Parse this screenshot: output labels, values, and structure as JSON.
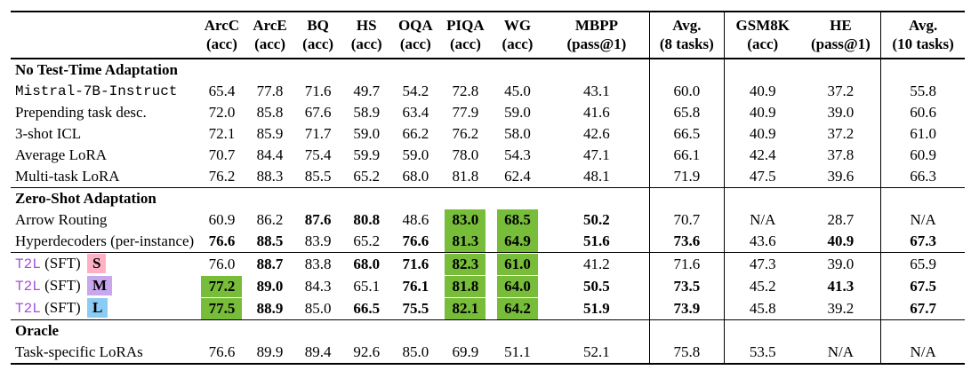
{
  "colors": {
    "green_highlight": "#77bd3a",
    "badge_s": "#ffb0c4",
    "badge_m": "#c9a7ef",
    "badge_l": "#8bccf5",
    "t2l_purple": "#a44fd9"
  },
  "header": {
    "columns": [
      {
        "key": "arcc",
        "line1": "ArcC",
        "line2": "(acc)"
      },
      {
        "key": "arce",
        "line1": "ArcE",
        "line2": "(acc)"
      },
      {
        "key": "bq",
        "line1": "BQ",
        "line2": "(acc)"
      },
      {
        "key": "hs",
        "line1": "HS",
        "line2": "(acc)"
      },
      {
        "key": "oqa",
        "line1": "OQA",
        "line2": "(acc)"
      },
      {
        "key": "piqa",
        "line1": "PIQA",
        "line2": "(acc)"
      },
      {
        "key": "wg",
        "line1": "WG",
        "line2": "(acc)"
      },
      {
        "key": "mbpp",
        "line1": "MBPP",
        "line2": "(pass@1)",
        "divider_after": true
      },
      {
        "key": "avg8",
        "line1": "Avg.",
        "line2": "(8 tasks)",
        "divider_after": true
      },
      {
        "key": "gsm8k",
        "line1": "GSM8K",
        "line2": "(acc)"
      },
      {
        "key": "he",
        "line1": "HE",
        "line2": "(pass@1)",
        "divider_after": true
      },
      {
        "key": "avg10",
        "line1": "Avg.",
        "line2": "(10 tasks)"
      }
    ]
  },
  "sections": [
    {
      "header": "No Test-Time Adaptation",
      "rows": [
        {
          "label": "Mistral-7B-Instruct",
          "mono": true,
          "cells": [
            "65.4",
            "77.8",
            "71.6",
            "49.7",
            "54.2",
            "72.8",
            "45.0",
            "43.1",
            "60.0",
            "40.9",
            "37.2",
            "55.8"
          ]
        },
        {
          "label": "Prepending task desc.",
          "cells": [
            "72.0",
            "85.8",
            "67.6",
            "58.9",
            "63.4",
            "77.9",
            "59.0",
            "41.6",
            "65.8",
            "40.9",
            "39.0",
            "60.6"
          ]
        },
        {
          "label": "3-shot ICL",
          "cells": [
            "72.1",
            "85.9",
            "71.7",
            "59.0",
            "66.2",
            "76.2",
            "58.0",
            "42.6",
            "66.5",
            "40.9",
            "37.2",
            "61.0"
          ]
        },
        {
          "label": "Average LoRA",
          "cells": [
            "70.7",
            "84.4",
            "75.4",
            "59.9",
            "59.0",
            "78.0",
            "54.3",
            "47.1",
            "66.1",
            "42.4",
            "37.8",
            "60.9"
          ]
        },
        {
          "label": "Multi-task LoRA",
          "cells": [
            "76.2",
            "88.3",
            "85.5",
            "65.2",
            "68.0",
            "81.8",
            "62.4",
            "48.1",
            "71.9",
            "47.5",
            "39.6",
            "66.3"
          ]
        }
      ]
    },
    {
      "header": "Zero-Shot Adaptation",
      "rows": [
        {
          "label": "Arrow Routing",
          "cells": [
            "60.9",
            "86.2",
            {
              "v": "87.6",
              "bold": true
            },
            {
              "v": "80.8",
              "bold": true
            },
            "48.6",
            {
              "v": "83.0",
              "green": true
            },
            {
              "v": "68.5",
              "green": true
            },
            {
              "v": "50.2",
              "bold": true
            },
            "70.7",
            "N/A",
            "28.7",
            "N/A"
          ]
        },
        {
          "label": "Hyperdecoders (per-instance)",
          "cells": [
            {
              "v": "76.6",
              "bold": true
            },
            {
              "v": "88.5",
              "bold": true
            },
            "83.9",
            "65.2",
            {
              "v": "76.6",
              "bold": true
            },
            {
              "v": "81.3",
              "green": true
            },
            {
              "v": "64.9",
              "green": true
            },
            {
              "v": "51.6",
              "bold": true
            },
            {
              "v": "73.6",
              "bold": true
            },
            "43.6",
            {
              "v": "40.9",
              "bold": true
            },
            {
              "v": "67.3",
              "bold": true
            }
          ]
        }
      ]
    },
    {
      "header": null,
      "rows": [
        {
          "label_parts": {
            "prefix": "T2L",
            "mid": "(SFT)",
            "badge": "S"
          },
          "cells": [
            "76.0",
            {
              "v": "88.7",
              "bold": true
            },
            "83.8",
            {
              "v": "68.0",
              "bold": true
            },
            {
              "v": "71.6",
              "bold": true
            },
            {
              "v": "82.3",
              "green": true
            },
            {
              "v": "61.0",
              "green": true
            },
            "41.2",
            "71.6",
            "47.3",
            "39.0",
            "65.9"
          ]
        },
        {
          "label_parts": {
            "prefix": "T2L",
            "mid": "(SFT)",
            "badge": "M"
          },
          "cells": [
            {
              "v": "77.2",
              "green": true
            },
            {
              "v": "89.0",
              "bold": true
            },
            "84.3",
            "65.1",
            {
              "v": "76.1",
              "bold": true
            },
            {
              "v": "81.8",
              "green": true
            },
            {
              "v": "64.0",
              "green": true
            },
            {
              "v": "50.5",
              "bold": true
            },
            {
              "v": "73.5",
              "bold": true
            },
            "45.2",
            {
              "v": "41.3",
              "bold": true
            },
            {
              "v": "67.5",
              "bold": true
            }
          ]
        },
        {
          "label_parts": {
            "prefix": "T2L",
            "mid": "(SFT)",
            "badge": "L"
          },
          "cells": [
            {
              "v": "77.5",
              "green": true
            },
            {
              "v": "88.9",
              "bold": true
            },
            "85.0",
            {
              "v": "66.5",
              "bold": true
            },
            {
              "v": "75.5",
              "bold": true
            },
            {
              "v": "82.1",
              "green": true
            },
            {
              "v": "64.2",
              "green": true
            },
            {
              "v": "51.9",
              "bold": true
            },
            {
              "v": "73.9",
              "bold": true
            },
            "45.8",
            "39.2",
            {
              "v": "67.7",
              "bold": true
            }
          ]
        }
      ]
    },
    {
      "header": "Oracle",
      "rows": [
        {
          "label": "Task-specific LoRAs",
          "cells": [
            "76.6",
            "89.9",
            "89.4",
            "92.6",
            "85.0",
            "69.9",
            "51.1",
            "52.1",
            "75.8",
            "53.5",
            "N/A",
            "N/A"
          ]
        }
      ]
    }
  ]
}
